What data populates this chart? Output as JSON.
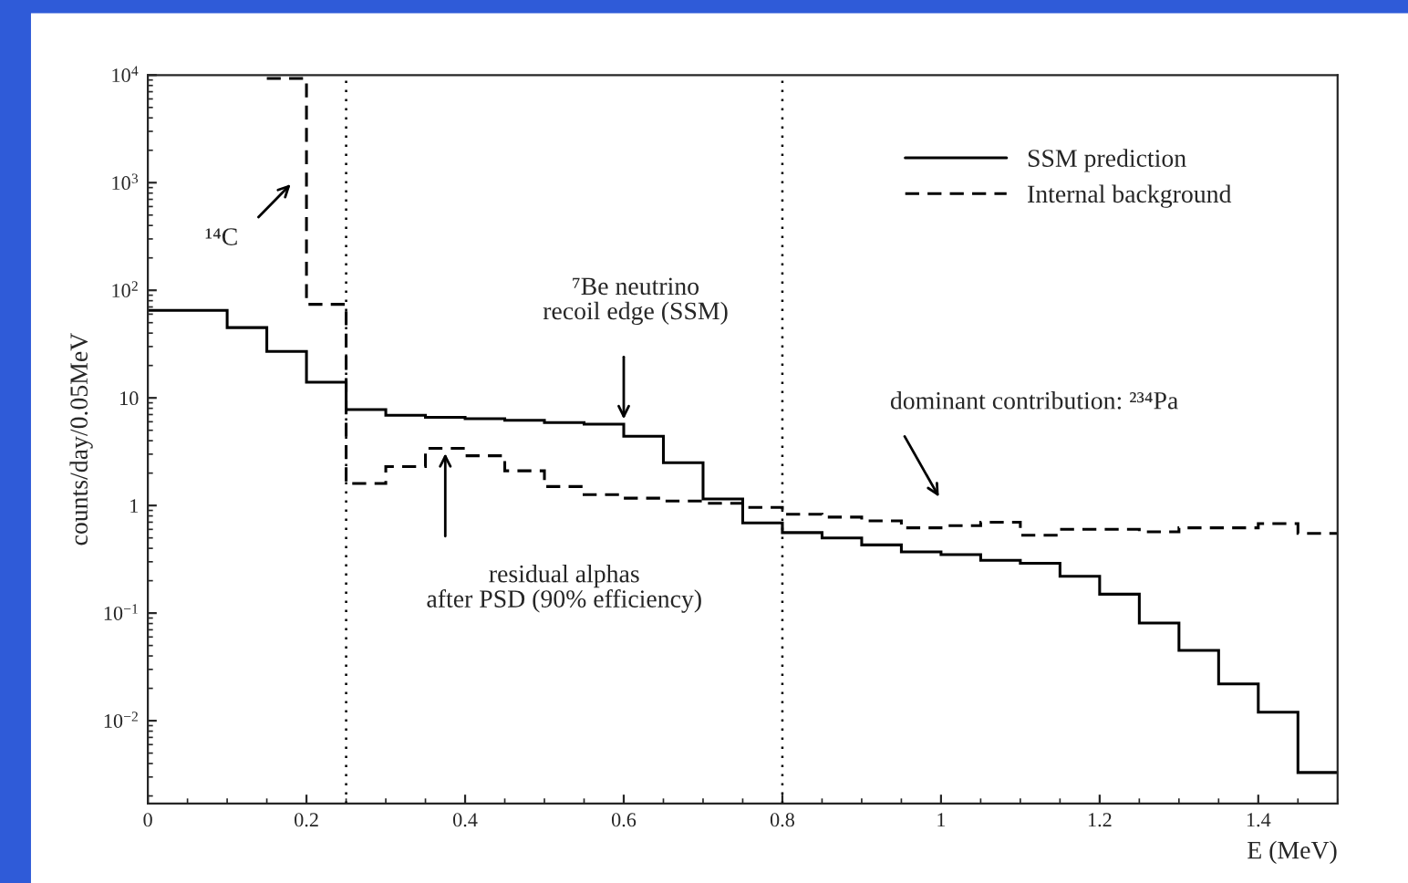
{
  "chart_data": {
    "type": "histogram",
    "xlabel": "E (MeV)",
    "ylabel": "counts/day/0.05MeV",
    "bins": [
      0,
      0.05,
      0.1,
      0.15,
      0.2,
      0.25,
      0.3,
      0.35,
      0.4,
      0.45,
      0.5,
      0.55,
      0.6,
      0.65,
      0.7,
      0.75,
      0.8,
      0.85,
      0.9,
      0.95,
      1.0,
      1.05,
      1.1,
      1.15,
      1.2,
      1.25,
      1.3,
      1.35,
      1.4,
      1.45,
      1.5
    ],
    "series": [
      {
        "name": "SSM prediction",
        "color": "#000000",
        "line_style": "solid",
        "values": [
          65,
          65,
          45,
          27,
          14,
          7.8,
          6.9,
          6.6,
          6.4,
          6.2,
          5.9,
          5.7,
          4.4,
          2.5,
          1.15,
          0.69,
          0.56,
          0.5,
          0.43,
          0.37,
          0.35,
          0.31,
          0.29,
          0.22,
          0.15,
          0.081,
          0.045,
          0.022,
          0.012,
          0.0033
        ]
      },
      {
        "name": "Internal background",
        "color": "#000000",
        "line_style": "dashed",
        "bins": [
          0.15,
          0.2,
          0.25,
          0.3,
          0.35,
          0.4,
          0.45,
          0.5,
          0.55,
          0.6,
          0.65,
          0.7,
          0.75,
          0.8,
          0.85,
          0.9,
          0.95,
          1.0,
          1.05,
          1.1,
          1.15,
          1.2,
          1.25,
          1.3,
          1.35,
          1.4,
          1.45,
          1.5
        ],
        "values": [
          9300,
          74,
          1.6,
          2.3,
          3.4,
          2.9,
          2.1,
          1.5,
          1.26,
          1.17,
          1.1,
          1.05,
          0.96,
          0.83,
          0.78,
          0.72,
          0.62,
          0.65,
          0.7,
          0.53,
          0.6,
          0.6,
          0.57,
          0.62,
          0.62,
          0.68,
          0.55
        ]
      }
    ],
    "xlim": [
      0,
      1.5
    ],
    "ylim": [
      0.0017,
      10000
    ],
    "log": "y",
    "xticks": [
      0,
      0.2,
      0.4,
      0.6,
      0.8,
      1,
      1.2,
      1.4
    ],
    "yticks": [
      {
        "value": 0.01,
        "label": "10$^{−2}$"
      },
      {
        "value": 0.1,
        "label": "10$^{−1}$"
      },
      1,
      10,
      {
        "value": 100,
        "label": "10$^{2}$"
      },
      {
        "value": 1000,
        "label": "10$^{3}$"
      },
      {
        "value": 10000,
        "label": "10$^{4}$"
      }
    ],
    "ref_lines": [
      {
        "axis": "x",
        "value": 0.25,
        "line_style": "dotted",
        "color": "#000000"
      },
      {
        "axis": "x",
        "value": 0.8,
        "line_style": "dotted",
        "color": "#000000"
      }
    ],
    "annotations": [
      "¹⁴C",
      {
        "text": "⁷Be neutrino\nrecoil edge (SSM)",
        "x": 0.6,
        "y": 5.7
      },
      "dominant contribution: ²³⁴Pa",
      {
        "text": "residual alphas\nafter PSD (90% efficiency)",
        "x": 0.375,
        "y": 3.4
      }
    ],
    "legend": "top right",
    "grid": false
  }
}
